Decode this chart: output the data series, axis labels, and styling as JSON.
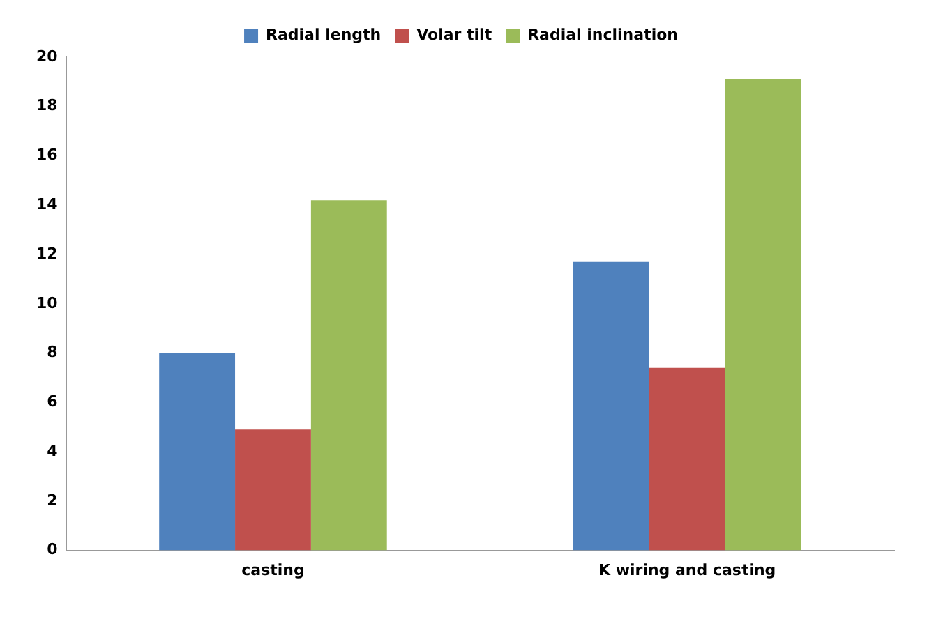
{
  "chart_data": {
    "type": "bar",
    "categories": [
      "casting",
      "K wiring and casting"
    ],
    "series": [
      {
        "name": "Radial length",
        "color": "#4f81bd",
        "values": [
          8,
          11.7
        ]
      },
      {
        "name": "Volar tilt",
        "color": "#c0504d",
        "values": [
          4.9,
          7.4
        ]
      },
      {
        "name": "Radial inclination",
        "color": "#9bbb59",
        "values": [
          14.2,
          19.1
        ]
      }
    ],
    "ylim": [
      0,
      20
    ],
    "yticks": [
      0,
      2,
      4,
      6,
      8,
      10,
      12,
      14,
      16,
      18,
      20
    ],
    "grid": false,
    "legend": "top"
  }
}
